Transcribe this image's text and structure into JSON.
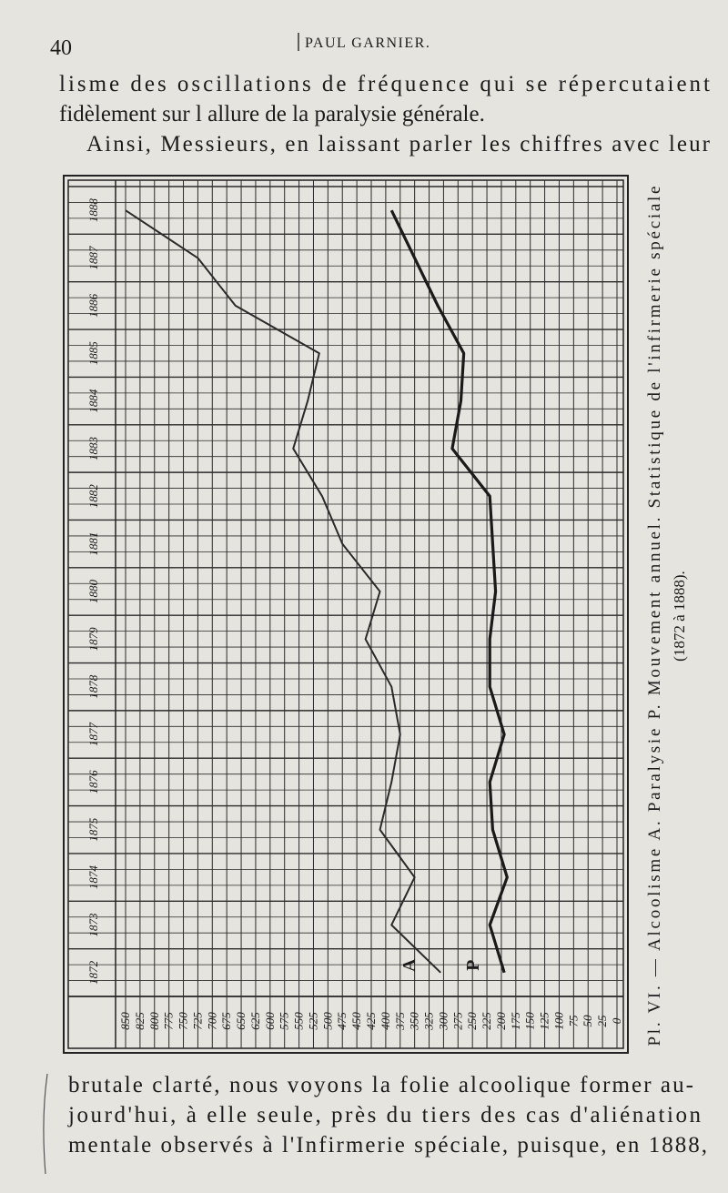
{
  "header": {
    "page_number": "40",
    "running_title": "PAUL GARNIER."
  },
  "text_top": [
    "lisme des oscillations de fréquence qui se répercutaient",
    "fidèlement sur l allure de la paralysie générale.",
    "Ainsi, Messieurs, en laissant parler les chiffres avec leur"
  ],
  "chart_data": {
    "type": "line",
    "caption": [
      "Pl. VI. — Alcoolisme A. Paralysie P. Mouvement annuel. Statistique de l'infirmerie spéciale",
      "(1872 à 1888)."
    ],
    "categories": [
      "1872",
      "1873",
      "1874",
      "1875",
      "1876",
      "1877",
      "1878",
      "1879",
      "1880",
      "1881",
      "1882",
      "1883",
      "1884",
      "1885",
      "1886",
      "1887",
      "1888"
    ],
    "series": [
      {
        "name": "A",
        "color": "#2a2a2a",
        "values": [
          305,
          390,
          350,
          410,
          390,
          375,
          390,
          435,
          410,
          475,
          510,
          560,
          535,
          515,
          660,
          725,
          850
        ]
      },
      {
        "name": "P",
        "color": "#1a1a1a",
        "values": [
          195,
          220,
          190,
          215,
          220,
          195,
          220,
          220,
          210,
          215,
          220,
          285,
          270,
          265,
          310,
          350,
          390
        ]
      }
    ],
    "xlim": [
      850,
      0
    ],
    "xticks": [
      850,
      825,
      800,
      775,
      750,
      725,
      700,
      675,
      650,
      625,
      600,
      575,
      550,
      525,
      500,
      475,
      450,
      425,
      400,
      375,
      350,
      325,
      300,
      275,
      250,
      225,
      200,
      175,
      150,
      125,
      100,
      75,
      50,
      25,
      0
    ],
    "grid": true
  },
  "text_bottom": [
    "brutale clarté, nous voyons la folie alcoolique former au-",
    "jourd'hui, à elle seule, près du tiers des cas d'aliénation",
    "mentale observés à l'Infirmerie spéciale, puisque, en 1888,"
  ]
}
